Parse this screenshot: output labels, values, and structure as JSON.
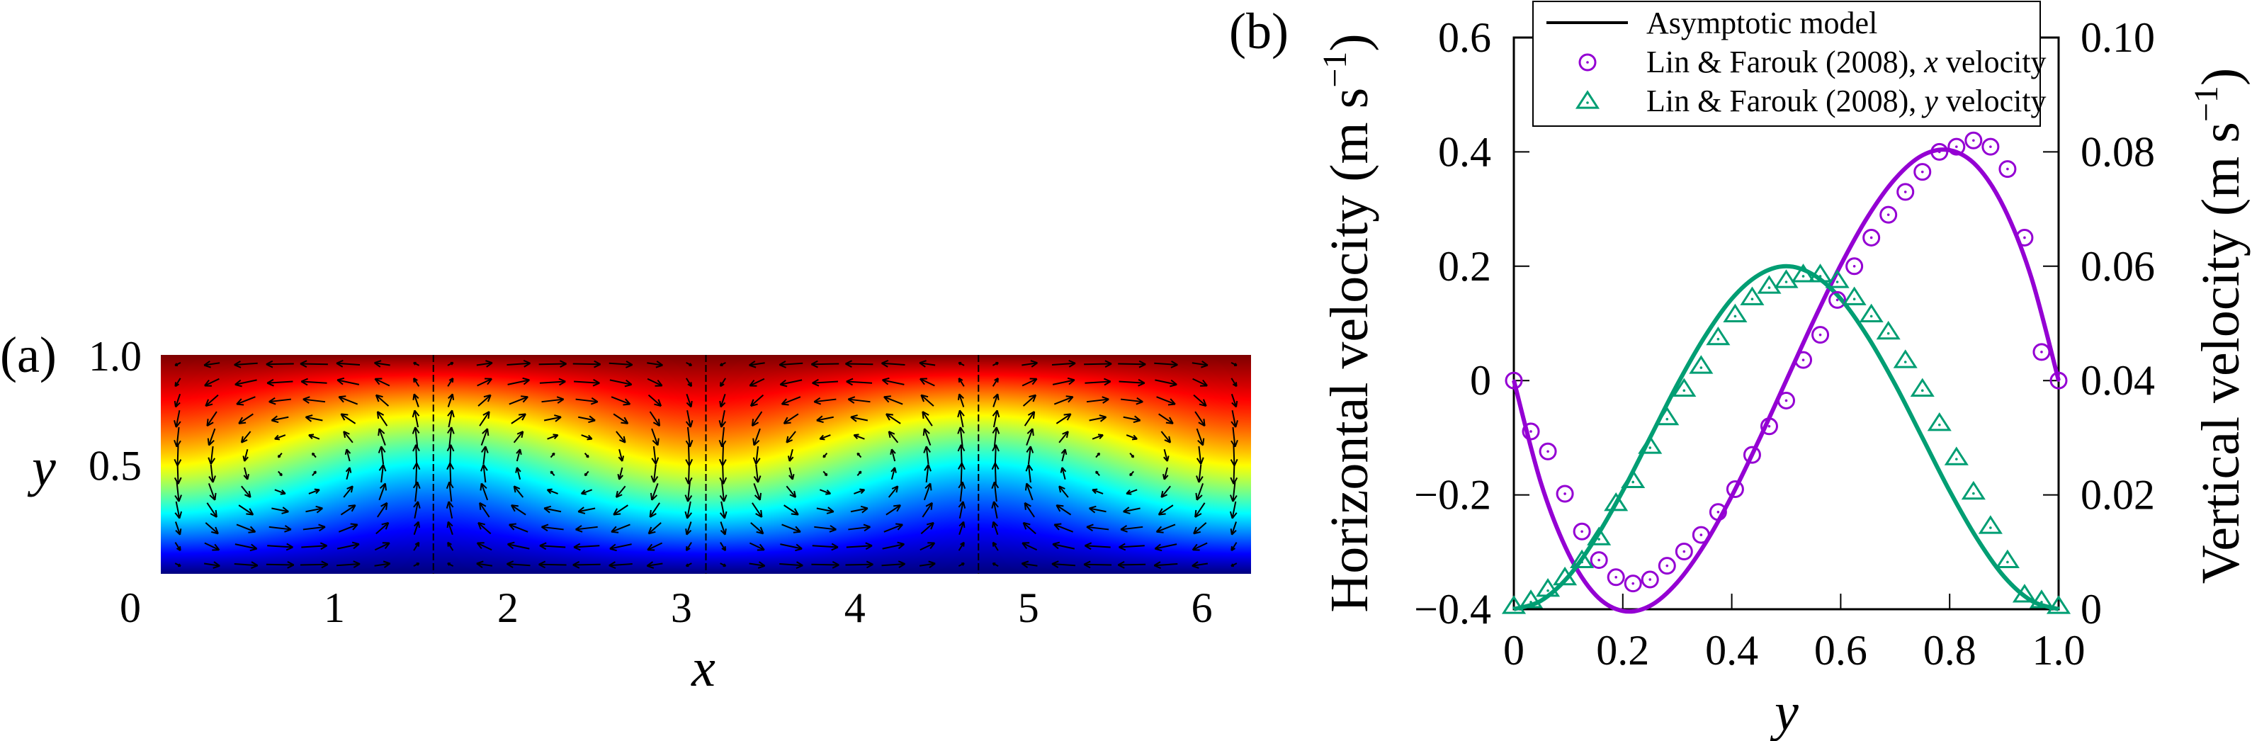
{
  "panel_a": {
    "label": "(a)",
    "xlabel": "x",
    "ylabel": "y",
    "xticks": [
      {
        "v": 0,
        "t": "0"
      },
      {
        "v": 1,
        "t": "1"
      },
      {
        "v": 2,
        "t": "2"
      },
      {
        "v": 3,
        "t": "3"
      },
      {
        "v": 4,
        "t": "4"
      },
      {
        "v": 5,
        "t": "5"
      },
      {
        "v": 6,
        "t": "6"
      }
    ],
    "yticks": [
      {
        "v": 1.0,
        "t": "1.0"
      },
      {
        "v": 0.5,
        "t": "0.5"
      }
    ],
    "xlim": [
      0,
      6.2832
    ],
    "ylim": [
      0,
      1
    ],
    "colormap": "jet",
    "cell_boundaries": [
      1.5708,
      3.1416,
      4.7124
    ]
  },
  "chart_data": {
    "type": "line",
    "panel_label": "(b)",
    "xlabel": "y",
    "ylabel_left": "Horizontal velocity (m s",
    "ylabel_right": "Vertical velocity (m s",
    "unit_exp": "−1",
    "unit_close": ")",
    "xlim": [
      0,
      1
    ],
    "ylim_left": [
      -0.4,
      0.6
    ],
    "ylim_right": [
      0,
      0.1
    ],
    "xticks": [
      {
        "v": 0,
        "t": "0"
      },
      {
        "v": 0.2,
        "t": "0.2"
      },
      {
        "v": 0.4,
        "t": "0.4"
      },
      {
        "v": 0.6,
        "t": "0.6"
      },
      {
        "v": 0.8,
        "t": "0.8"
      },
      {
        "v": 1.0,
        "t": "1.0"
      }
    ],
    "yticks_left": [
      {
        "v": -0.4,
        "t": "−0.4"
      },
      {
        "v": -0.2,
        "t": "−0.2"
      },
      {
        "v": 0,
        "t": "0"
      },
      {
        "v": 0.2,
        "t": "0.2"
      },
      {
        "v": 0.4,
        "t": "0.4"
      },
      {
        "v": 0.6,
        "t": "0.6"
      }
    ],
    "yticks_right": [
      {
        "v": 0,
        "t": "0"
      },
      {
        "v": 0.02,
        "t": "0.02"
      },
      {
        "v": 0.04,
        "t": "0.04"
      },
      {
        "v": 0.06,
        "t": "0.06"
      },
      {
        "v": 0.08,
        "t": "0.08"
      },
      {
        "v": 0.1,
        "t": "0.10"
      }
    ],
    "legend": {
      "placement": "top-center",
      "entries": [
        {
          "label": "Asymptotic model",
          "pre": "",
          "var": "",
          "post": ""
        },
        {
          "label": "",
          "pre": "Lin & Farouk (2008), ",
          "var": "x",
          "post": " velocity"
        },
        {
          "label": "",
          "pre": "Lin & Farouk (2008), ",
          "var": "y",
          "post": " velocity"
        }
      ]
    },
    "colors": {
      "x_velocity": "#9400D3",
      "y_velocity": "#009E73"
    },
    "model_x": [
      0,
      0.05,
      0.1,
      0.15,
      0.2,
      0.25,
      0.3,
      0.35,
      0.4,
      0.45,
      0.5,
      0.55,
      0.6,
      0.65,
      0.7,
      0.75,
      0.8,
      0.85,
      0.9,
      0.95,
      1.0
    ],
    "series": [
      {
        "name": "Asymptotic model, x velocity",
        "axis": "left",
        "kind": "line",
        "values": [
          0,
          -0.18,
          -0.302,
          -0.375,
          -0.403,
          -0.394,
          -0.353,
          -0.287,
          -0.202,
          -0.104,
          0,
          0.104,
          0.202,
          0.287,
          0.353,
          0.394,
          0.403,
          0.375,
          0.302,
          0.18,
          0
        ]
      },
      {
        "name": "Asymptotic model, y velocity",
        "axis": "right",
        "kind": "line",
        "values": [
          0,
          0.0015,
          0.0057,
          0.0124,
          0.0207,
          0.03,
          0.0393,
          0.0476,
          0.0543,
          0.0585,
          0.06,
          0.0585,
          0.0543,
          0.0476,
          0.0393,
          0.03,
          0.0207,
          0.0124,
          0.0057,
          0.0015,
          0
        ]
      }
    ],
    "data_x": [
      0,
      0.03125,
      0.0625,
      0.09375,
      0.125,
      0.15625,
      0.1875,
      0.21875,
      0.25,
      0.28125,
      0.3125,
      0.34375,
      0.375,
      0.40625,
      0.4375,
      0.46875,
      0.5,
      0.53125,
      0.5625,
      0.59375,
      0.625,
      0.65625,
      0.6875,
      0.71875,
      0.75,
      0.78125,
      0.8125,
      0.84375,
      0.875,
      0.90625,
      0.9375,
      0.96875,
      1.0
    ],
    "points": [
      {
        "name": "Lin & Farouk (2008), x velocity",
        "axis": "left",
        "marker": "circle",
        "values": [
          0,
          -0.089,
          -0.124,
          -0.198,
          -0.264,
          -0.314,
          -0.344,
          -0.355,
          -0.348,
          -0.324,
          -0.299,
          -0.27,
          -0.23,
          -0.19,
          -0.13,
          -0.08,
          -0.035,
          0.036,
          0.08,
          0.141,
          0.2,
          0.25,
          0.29,
          0.33,
          0.365,
          0.4,
          0.409,
          0.42,
          0.409,
          0.37,
          0.25,
          0.05,
          0
        ]
      },
      {
        "name": "Lin & Farouk (2008), y velocity",
        "axis": "right",
        "marker": "triangle",
        "values": [
          0,
          0.001,
          0.003,
          0.005,
          0.008,
          0.012,
          0.018,
          0.022,
          0.028,
          0.033,
          0.038,
          0.042,
          0.047,
          0.051,
          0.054,
          0.056,
          0.057,
          0.058,
          0.058,
          0.057,
          0.054,
          0.051,
          0.048,
          0.043,
          0.038,
          0.032,
          0.026,
          0.02,
          0.014,
          0.008,
          0.002,
          0.001,
          0
        ]
      }
    ]
  }
}
